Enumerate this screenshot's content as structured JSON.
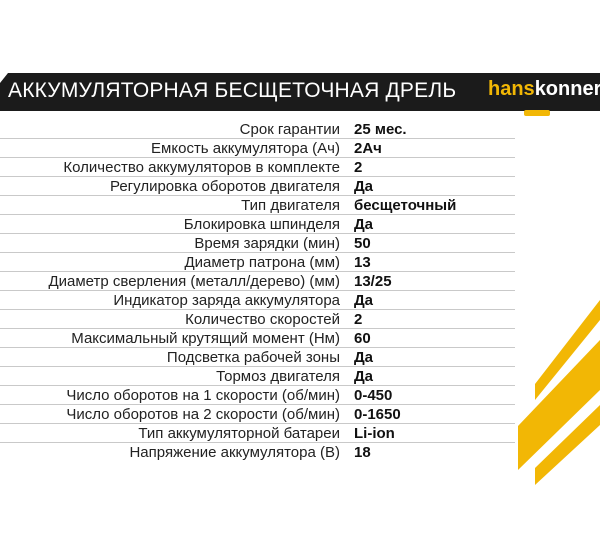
{
  "header": {
    "title": "АККУМУЛЯТОРНАЯ БЕСЩЕТОЧНАЯ ДРЕЛЬ",
    "logo_part1": "hans",
    "logo_part2": "konner"
  },
  "accent_color": "#f2b705",
  "specs": [
    {
      "label": "Срок гарантии",
      "value": "25 мес."
    },
    {
      "label": "Емкость аккумулятора (Ач)",
      "value": "2Ач"
    },
    {
      "label": "Количество аккумуляторов в комплекте",
      "value": "2"
    },
    {
      "label": "Регулировка оборотов двигателя",
      "value": "Да"
    },
    {
      "label": "Тип двигателя",
      "value": "бесщеточный"
    },
    {
      "label": "Блокировка шпинделя",
      "value": "Да"
    },
    {
      "label": "Время зарядки (мин)",
      "value": "50"
    },
    {
      "label": "Диаметр патрона (мм)",
      "value": "13"
    },
    {
      "label": "Диаметр сверления (металл/дерево) (мм)",
      "value": "13/25"
    },
    {
      "label": "Индикатор заряда аккумулятора",
      "value": "Да"
    },
    {
      "label": "Количество скоростей",
      "value": "2"
    },
    {
      "label": "Максимальный крутящий момент (Нм)",
      "value": "60"
    },
    {
      "label": "Подсветка рабочей зоны",
      "value": "Да"
    },
    {
      "label": "Тормоз двигателя",
      "value": "Да"
    },
    {
      "label": "Число оборотов на 1 скорости (об/мин)",
      "value": "0-450"
    },
    {
      "label": "Число оборотов на 2 скорости (об/мин)",
      "value": "0-1650"
    },
    {
      "label": "Тип аккумуляторной батареи",
      "value": "Li-ion"
    },
    {
      "label": "Напряжение аккумулятора (В)",
      "value": "18"
    }
  ]
}
